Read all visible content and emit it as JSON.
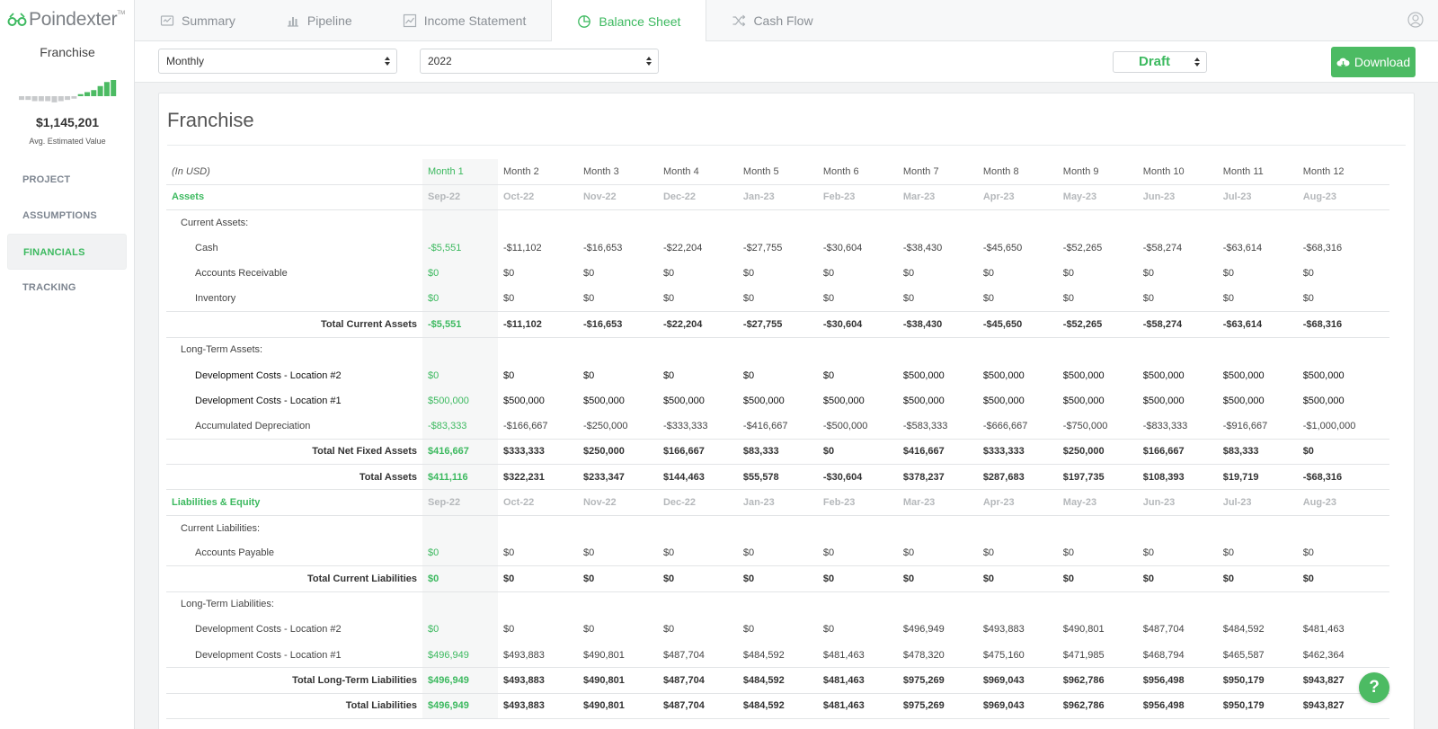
{
  "app": {
    "logo_text": "Poindexter",
    "logo_tm": "TM"
  },
  "sidebar": {
    "project_name": "Franchise",
    "est_value": "$1,145,201",
    "est_label": "Avg. Estimated Value",
    "sparkline": {
      "values": [
        -3,
        -3,
        -4,
        -4,
        -4,
        -5,
        -4,
        -3,
        -2,
        1,
        2,
        3,
        5,
        7,
        8
      ],
      "negative_color": "#c8cacc",
      "positive_color": "#4cbb63"
    },
    "nav": [
      {
        "label": "PROJECT"
      },
      {
        "label": "ASSUMPTIONS"
      },
      {
        "label": "FINANCIALS",
        "active": true
      },
      {
        "label": "TRACKING"
      }
    ]
  },
  "tabs": [
    {
      "label": "Summary",
      "icon": "summary-icon"
    },
    {
      "label": "Pipeline",
      "icon": "bar-chart-icon"
    },
    {
      "label": "Income Statement",
      "icon": "line-chart-icon"
    },
    {
      "label": "Balance Sheet",
      "icon": "pie-chart-icon",
      "active": true
    },
    {
      "label": "Cash Flow",
      "icon": "shuffle-icon"
    }
  ],
  "controls": {
    "period": "Monthly",
    "year": "2022",
    "status": "Draft",
    "download_label": "Download"
  },
  "colors": {
    "accent": "#3cb95f",
    "button": "#4cbb63"
  },
  "report": {
    "title": "Franchise",
    "unit_label": "(In USD)",
    "months": [
      "Month 1",
      "Month 2",
      "Month 3",
      "Month 4",
      "Month 5",
      "Month 6",
      "Month 7",
      "Month 8",
      "Month 9",
      "Month 10",
      "Month 11",
      "Month 12"
    ],
    "dates": [
      "Sep-22",
      "Oct-22",
      "Nov-22",
      "Dec-22",
      "Jan-23",
      "Feb-23",
      "Mar-23",
      "Apr-23",
      "May-23",
      "Jun-23",
      "Jul-23",
      "Aug-23"
    ],
    "rows": [
      {
        "type": "sec",
        "label": "Assets",
        "dates": true
      },
      {
        "type": "sub",
        "label": "Current Assets:"
      },
      {
        "type": "item",
        "label": "Cash",
        "values": [
          "-$5,551",
          "-$11,102",
          "-$16,653",
          "-$22,204",
          "-$27,755",
          "-$30,604",
          "-$38,430",
          "-$45,650",
          "-$52,265",
          "-$58,274",
          "-$63,614",
          "-$68,316"
        ]
      },
      {
        "type": "item",
        "label": "Accounts Receivable",
        "values": [
          "$0",
          "$0",
          "$0",
          "$0",
          "$0",
          "$0",
          "$0",
          "$0",
          "$0",
          "$0",
          "$0",
          "$0"
        ]
      },
      {
        "type": "item",
        "label": "Inventory",
        "values": [
          "$0",
          "$0",
          "$0",
          "$0",
          "$0",
          "$0",
          "$0",
          "$0",
          "$0",
          "$0",
          "$0",
          "$0"
        ]
      },
      {
        "type": "total",
        "label": "Total Current Assets",
        "values": [
          "-$5,551",
          "-$11,102",
          "-$16,653",
          "-$22,204",
          "-$27,755",
          "-$30,604",
          "-$38,430",
          "-$45,650",
          "-$52,265",
          "-$58,274",
          "-$63,614",
          "-$68,316"
        ]
      },
      {
        "type": "sub",
        "label": "Long-Term Assets:"
      },
      {
        "type": "item",
        "dark": true,
        "label": "Development Costs - Location #2",
        "values": [
          "$0",
          "$0",
          "$0",
          "$0",
          "$0",
          "$0",
          "$500,000",
          "$500,000",
          "$500,000",
          "$500,000",
          "$500,000",
          "$500,000"
        ]
      },
      {
        "type": "item",
        "dark": true,
        "label": "Development Costs - Location #1",
        "values": [
          "$500,000",
          "$500,000",
          "$500,000",
          "$500,000",
          "$500,000",
          "$500,000",
          "$500,000",
          "$500,000",
          "$500,000",
          "$500,000",
          "$500,000",
          "$500,000"
        ]
      },
      {
        "type": "item",
        "label": "Accumulated Depreciation",
        "values": [
          "-$83,333",
          "-$166,667",
          "-$250,000",
          "-$333,333",
          "-$416,667",
          "-$500,000",
          "-$583,333",
          "-$666,667",
          "-$750,000",
          "-$833,333",
          "-$916,667",
          "-$1,000,000"
        ]
      },
      {
        "type": "total",
        "label": "Total Net Fixed Assets",
        "values": [
          "$416,667",
          "$333,333",
          "$250,000",
          "$166,667",
          "$83,333",
          "$0",
          "$416,667",
          "$333,333",
          "$250,000",
          "$166,667",
          "$83,333",
          "$0"
        ]
      },
      {
        "type": "total",
        "label": "Total Assets",
        "values": [
          "$411,116",
          "$322,231",
          "$233,347",
          "$144,463",
          "$55,578",
          "-$30,604",
          "$378,237",
          "$287,683",
          "$197,735",
          "$108,393",
          "$19,719",
          "-$68,316"
        ]
      },
      {
        "type": "sec",
        "label": "Liabilities & Equity",
        "dates": true
      },
      {
        "type": "sub",
        "label": "Current Liabilities:"
      },
      {
        "type": "item",
        "label": "Accounts Payable",
        "values": [
          "$0",
          "$0",
          "$0",
          "$0",
          "$0",
          "$0",
          "$0",
          "$0",
          "$0",
          "$0",
          "$0",
          "$0"
        ]
      },
      {
        "type": "total",
        "label": "Total Current Liabilities",
        "values": [
          "$0",
          "$0",
          "$0",
          "$0",
          "$0",
          "$0",
          "$0",
          "$0",
          "$0",
          "$0",
          "$0",
          "$0"
        ]
      },
      {
        "type": "sub",
        "label": "Long-Term Liabilities:"
      },
      {
        "type": "item",
        "label": "Development Costs - Location #2",
        "values": [
          "$0",
          "$0",
          "$0",
          "$0",
          "$0",
          "$0",
          "$496,949",
          "$493,883",
          "$490,801",
          "$487,704",
          "$484,592",
          "$481,463"
        ]
      },
      {
        "type": "item",
        "label": "Development Costs - Location #1",
        "values": [
          "$496,949",
          "$493,883",
          "$490,801",
          "$487,704",
          "$484,592",
          "$481,463",
          "$478,320",
          "$475,160",
          "$471,985",
          "$468,794",
          "$465,587",
          "$462,364"
        ]
      },
      {
        "type": "total",
        "label": "Total Long-Term Liabilities",
        "values": [
          "$496,949",
          "$493,883",
          "$490,801",
          "$487,704",
          "$484,592",
          "$481,463",
          "$975,269",
          "$969,043",
          "$962,786",
          "$956,498",
          "$950,179",
          "$943,827"
        ]
      },
      {
        "type": "total",
        "label": "Total Liabilities",
        "values": [
          "$496,949",
          "$493,883",
          "$490,801",
          "$487,704",
          "$484,592",
          "$481,463",
          "$975,269",
          "$969,043",
          "$962,786",
          "$956,498",
          "$950,179",
          "$943,827"
        ]
      }
    ]
  },
  "help_label": "?"
}
